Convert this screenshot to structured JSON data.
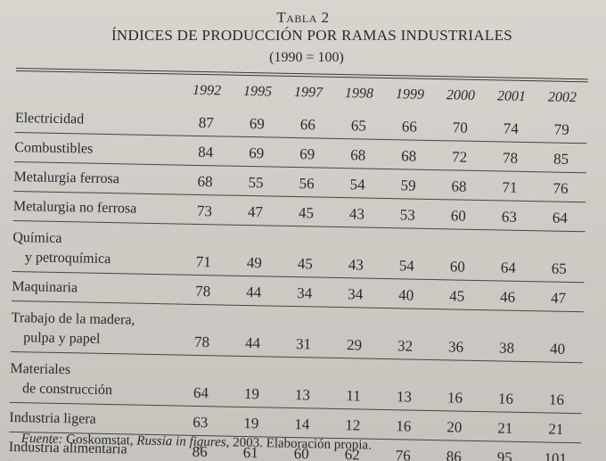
{
  "table_label": "Tabla 2",
  "title": "ÍNDICES DE PRODUCCIÓN POR RAMAS INDUSTRIALES",
  "base_note": "(1990 = 100)",
  "years": [
    "1992",
    "1995",
    "1997",
    "1998",
    "1999",
    "2000",
    "2001",
    "2002"
  ],
  "rows": [
    {
      "name": "Electricidad",
      "name2": "",
      "values": [
        "87",
        "69",
        "66",
        "65",
        "66",
        "70",
        "74",
        "79"
      ]
    },
    {
      "name": "Combustibles",
      "name2": "",
      "values": [
        "84",
        "69",
        "69",
        "68",
        "68",
        "72",
        "78",
        "85"
      ]
    },
    {
      "name": "Metalurgia ferrosa",
      "name2": "",
      "values": [
        "68",
        "55",
        "56",
        "54",
        "59",
        "68",
        "71",
        "76"
      ]
    },
    {
      "name": "Metalurgia no ferrosa",
      "name2": "",
      "values": [
        "73",
        "47",
        "45",
        "43",
        "53",
        "60",
        "63",
        "64"
      ]
    },
    {
      "name": "Química",
      "name2": "y petroquímica",
      "values": [
        "71",
        "49",
        "45",
        "43",
        "54",
        "60",
        "64",
        "65"
      ]
    },
    {
      "name": "Maquinaria",
      "name2": "",
      "values": [
        "78",
        "44",
        "34",
        "34",
        "40",
        "45",
        "46",
        "47"
      ]
    },
    {
      "name": "Trabajo de la madera,",
      "name2": "pulpa y papel",
      "values": [
        "78",
        "44",
        "31",
        "29",
        "32",
        "36",
        "38",
        "40"
      ]
    },
    {
      "name": "Materiales",
      "name2": "de construcción",
      "values": [
        "64",
        "19",
        "13",
        "11",
        "13",
        "16",
        "16",
        "16"
      ]
    },
    {
      "name": "Industria ligera",
      "name2": "",
      "values": [
        "63",
        "19",
        "14",
        "12",
        "16",
        "20",
        "21",
        "21"
      ]
    },
    {
      "name": "Industria alimentaria",
      "name2": "",
      "values": [
        "86",
        "61",
        "60",
        "62",
        "76",
        "86",
        "95",
        "101"
      ]
    }
  ],
  "footnote": {
    "label": "Fuente:",
    "source": " Goskomstat, ",
    "publication": "Russia in figures",
    "rest": ", 2003. Elaboración propia."
  }
}
